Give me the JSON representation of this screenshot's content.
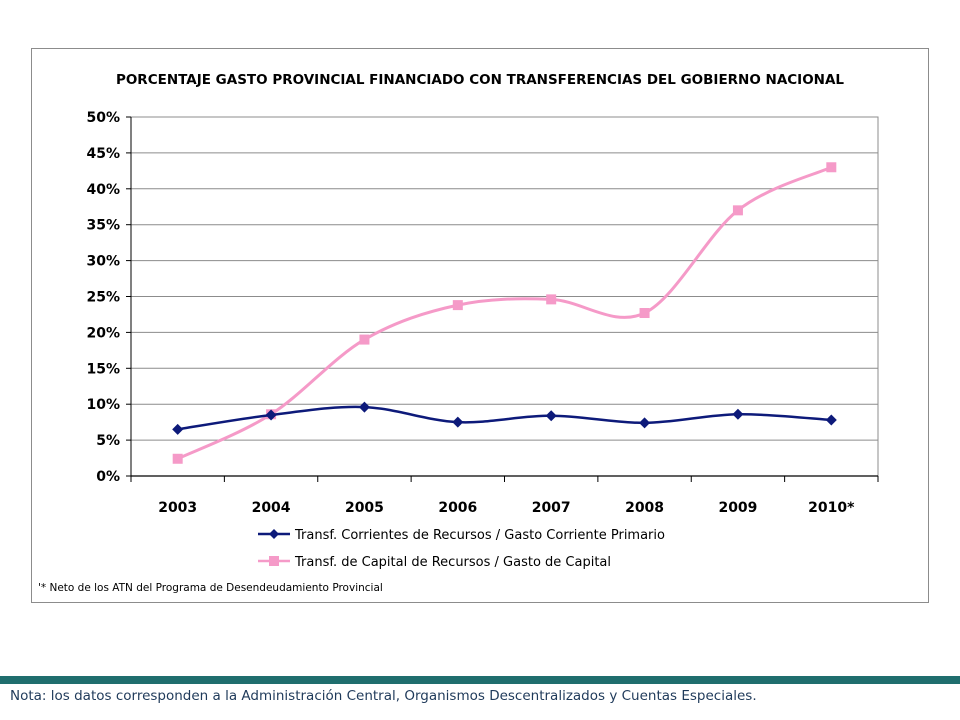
{
  "chart_data": {
    "type": "line",
    "title": "PORCENTAJE GASTO PROVINCIAL FINANCIADO CON TRANSFERENCIAS DEL GOBIERNO NACIONAL",
    "categories": [
      "2003",
      "2004",
      "2005",
      "2006",
      "2007",
      "2008",
      "2009",
      "2010*"
    ],
    "ylim": [
      0,
      50
    ],
    "yticks": [
      "0%",
      "5%",
      "10%",
      "15%",
      "20%",
      "25%",
      "30%",
      "35%",
      "40%",
      "45%",
      "50%"
    ],
    "xlabel": "",
    "ylabel": "",
    "grid": true,
    "legend_position": "bottom",
    "series": [
      {
        "name": "Transf. Corrientes de Recursos / Gasto Corriente Primario",
        "values": [
          6.5,
          8.5,
          9.6,
          7.5,
          8.4,
          7.4,
          8.6,
          7.8
        ],
        "color": "#0d1a7a",
        "marker": "diamond"
      },
      {
        "name": "Transf. de Capital de Recursos / Gasto de Capital",
        "values": [
          2.4,
          8.6,
          19.0,
          23.8,
          24.6,
          22.7,
          37.0,
          43.0
        ],
        "color": "#f59ac8",
        "marker": "square"
      }
    ],
    "footnote": "'* Neto de los ATN del Programa de Desendeudamiento Provincial"
  },
  "page": {
    "nota": "Nota: los datos corresponden a la Administración Central, Organismos Descentralizados y Cuentas Especiales."
  }
}
